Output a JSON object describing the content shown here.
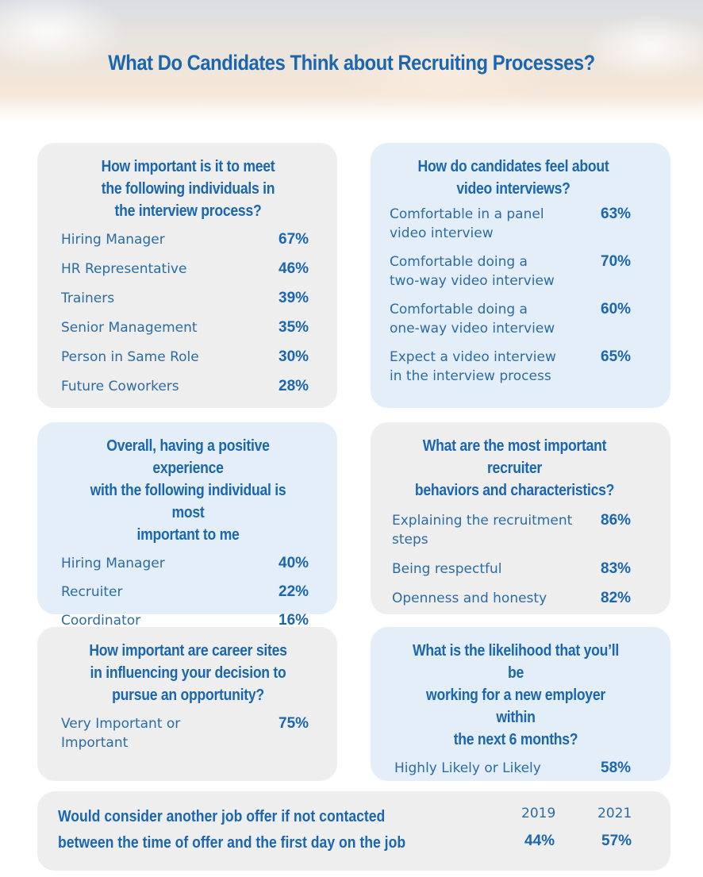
{
  "title": "What Do Candidates Think about Recruiting Processes?",
  "cards": {
    "meet": {
      "title": [
        "How important is it to meet",
        "the following individuals in",
        "the interview process?"
      ],
      "rows": [
        {
          "label": "Hiring Manager",
          "value": "67%"
        },
        {
          "label": "HR Representative",
          "value": "46%"
        },
        {
          "label": "Trainers",
          "value": "39%"
        },
        {
          "label": "Senior Management",
          "value": "35%"
        },
        {
          "label": "Person in Same Role",
          "value": "30%"
        },
        {
          "label": "Future Coworkers",
          "value": "28%"
        }
      ]
    },
    "video": {
      "title": [
        "How do candidates feel about",
        "video interviews?"
      ],
      "rows": [
        {
          "label1": "Comfortable in a panel",
          "label2": "video interview",
          "value": "63%"
        },
        {
          "label1": "Comfortable doing a",
          "label2": "two-way video interview",
          "value": "70%"
        },
        {
          "label1": "Comfortable doing a",
          "label2": "one-way video interview",
          "value": "60%"
        },
        {
          "label1": "Expect a video interview",
          "label2": "in the interview process",
          "value": "65%"
        }
      ]
    },
    "positive": {
      "title": [
        "Overall, having a positive experience",
        "with the following individual is most",
        "important to me"
      ],
      "rows": [
        {
          "label": "Hiring Manager",
          "value": "40%"
        },
        {
          "label": "Recruiter",
          "value": "22%"
        },
        {
          "label": "Coordinator",
          "value": "16%"
        }
      ]
    },
    "behaviors": {
      "title": [
        "What are the most important recruiter",
        "behaviors and characteristics?"
      ],
      "rows": [
        {
          "label1": "Explaining the recruitment",
          "label2": "steps",
          "value": "86%"
        },
        {
          "label1": "Being respectful",
          "label2": "",
          "value": "83%"
        },
        {
          "label1": "Openness and honesty",
          "label2": "",
          "value": "82%"
        }
      ]
    },
    "career": {
      "title": [
        "How important are career sites",
        "in influencing your decision to",
        "pursue an opportunity?"
      ],
      "rows": [
        {
          "label1": "Very Important or",
          "label2": "Important",
          "value": "75%"
        }
      ]
    },
    "likelihood": {
      "title": [
        "What is the likelihood that you’ll be",
        "working for a new employer within",
        "the next 6 months?"
      ],
      "rows": [
        {
          "label1": "Highly Likely or Likely",
          "label2": "",
          "value": "58%"
        }
      ]
    }
  },
  "footer": {
    "question": [
      "Would consider another job offer if not contacted",
      "between the time of offer and the first day on the job"
    ],
    "years": [
      "2019",
      "2021"
    ],
    "values": [
      "44%",
      "57%"
    ]
  }
}
